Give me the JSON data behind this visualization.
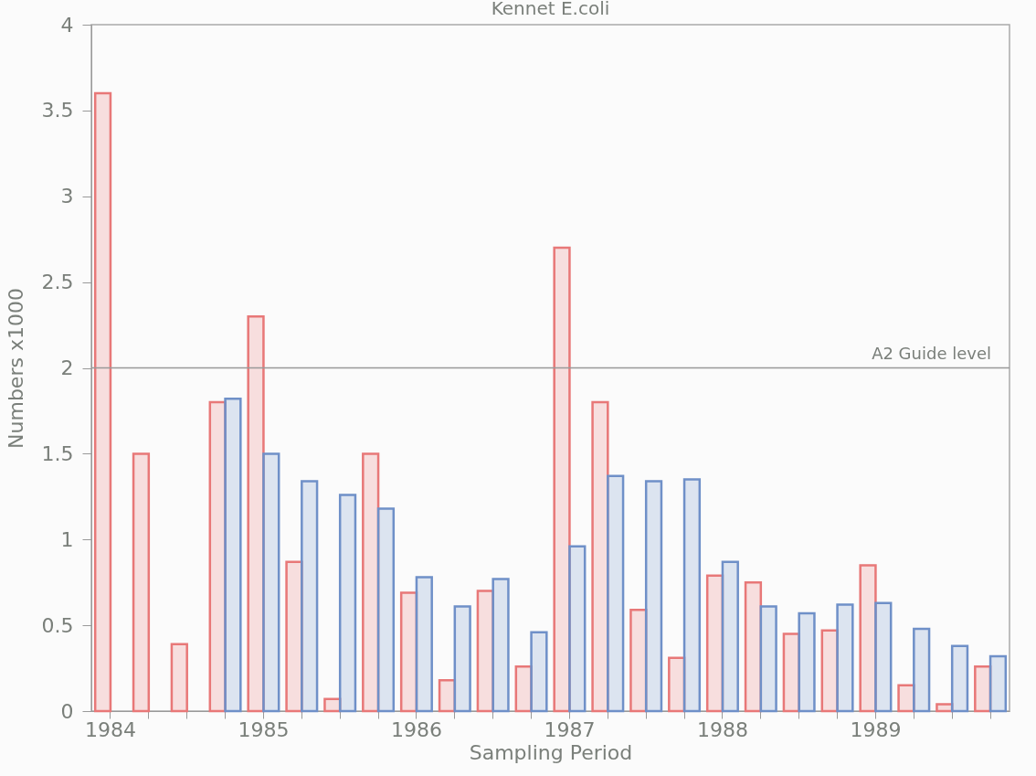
{
  "chart_data": {
    "type": "bar",
    "title": "Kennet E.coli",
    "xlabel": "Sampling Period",
    "ylabel": "Numbers x1000",
    "categories": [
      "1984",
      null,
      null,
      null,
      "1985",
      null,
      null,
      null,
      "1986",
      null,
      null,
      null,
      "1987",
      null,
      null,
      null,
      "1988",
      null,
      null,
      null,
      "1989",
      null,
      null,
      null
    ],
    "series": [
      {
        "color": "#e87878",
        "values": [
          3.6,
          1.5,
          0.39,
          1.8,
          2.3,
          0.87,
          0.07,
          1.5,
          0.69,
          0.18,
          0.7,
          0.26,
          2.7,
          1.8,
          0.59,
          0.31,
          0.79,
          0.75,
          0.45,
          0.47,
          0.85,
          0.15,
          0.04,
          0.26
        ]
      },
      {
        "color": "#6f90c8",
        "values": [
          null,
          null,
          null,
          1.82,
          1.5,
          1.34,
          1.26,
          1.18,
          0.78,
          0.61,
          0.77,
          0.46,
          0.96,
          1.37,
          1.34,
          1.35,
          0.87,
          0.61,
          0.57,
          0.62,
          0.63,
          0.48,
          0.38,
          0.32
        ]
      }
    ],
    "ylim": [
      0,
      4
    ],
    "yticks": [
      0,
      0.5,
      1,
      1.5,
      2,
      2.5,
      3,
      3.5,
      4
    ],
    "ref_lines": [
      {
        "axis": "y",
        "value": 2,
        "label": "A2 Guide level"
      }
    ],
    "grid": false
  }
}
